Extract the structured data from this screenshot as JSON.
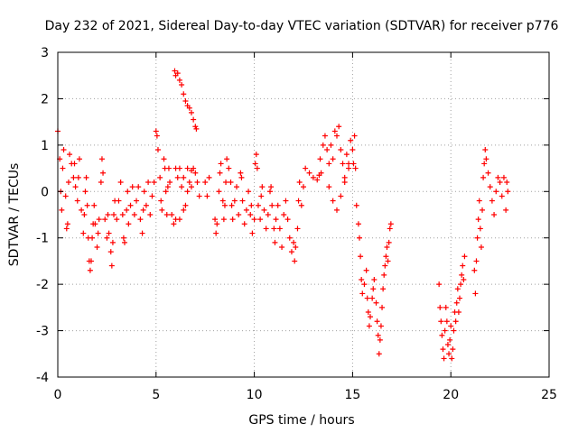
{
  "chart_data": {
    "type": "scatter",
    "title": "Day 232 of 2021, Sidereal Day-to-day VTEC variation (SDTVAR) for receiver p776",
    "xlabel": "GPS time / hours",
    "ylabel": "SDTVAR / TECUs",
    "xlim": [
      0,
      25
    ],
    "ylim": [
      -4,
      3
    ],
    "xticks": [
      "0",
      "5",
      "10",
      "15",
      "20",
      "25"
    ],
    "yticks": [
      "-4",
      "-3",
      "-2",
      "-1",
      "0",
      "1",
      "2",
      "3"
    ],
    "grid": true,
    "marker": "+",
    "series": [
      {
        "name": "SDTVAR",
        "color": "#ff0000",
        "points": [
          [
            0.0,
            1.3
          ],
          [
            0.1,
            0.7
          ],
          [
            0.15,
            0.0
          ],
          [
            0.2,
            -0.4
          ],
          [
            0.25,
            0.5
          ],
          [
            0.3,
            0.9
          ],
          [
            0.4,
            -0.1
          ],
          [
            0.45,
            -0.8
          ],
          [
            0.5,
            -0.7
          ],
          [
            0.55,
            0.2
          ],
          [
            0.6,
            0.8
          ],
          [
            0.7,
            0.6
          ],
          [
            0.8,
            0.3
          ],
          [
            0.85,
            0.6
          ],
          [
            0.9,
            0.1
          ],
          [
            1.0,
            -0.2
          ],
          [
            1.05,
            0.3
          ],
          [
            1.1,
            0.7
          ],
          [
            1.2,
            -0.4
          ],
          [
            1.3,
            -0.9
          ],
          [
            1.35,
            -0.5
          ],
          [
            1.4,
            0.0
          ],
          [
            1.45,
            0.3
          ],
          [
            1.5,
            -0.3
          ],
          [
            1.55,
            -1.0
          ],
          [
            1.6,
            -1.5
          ],
          [
            1.65,
            -1.7
          ],
          [
            1.7,
            -1.5
          ],
          [
            1.75,
            -1.0
          ],
          [
            1.8,
            -0.7
          ],
          [
            1.85,
            -0.3
          ],
          [
            1.9,
            -0.7
          ],
          [
            2.0,
            -1.2
          ],
          [
            2.05,
            -0.9
          ],
          [
            2.1,
            -0.6
          ],
          [
            2.2,
            0.2
          ],
          [
            2.25,
            0.7
          ],
          [
            2.3,
            0.4
          ],
          [
            2.4,
            -0.6
          ],
          [
            2.5,
            -1.0
          ],
          [
            2.55,
            -0.5
          ],
          [
            2.6,
            -0.9
          ],
          [
            2.7,
            -1.3
          ],
          [
            2.75,
            -1.6
          ],
          [
            2.8,
            -1.1
          ],
          [
            2.85,
            -0.5
          ],
          [
            2.9,
            -0.2
          ],
          [
            3.0,
            -0.6
          ],
          [
            3.1,
            -0.2
          ],
          [
            3.2,
            0.2
          ],
          [
            3.3,
            -0.5
          ],
          [
            3.35,
            -1.0
          ],
          [
            3.4,
            -1.1
          ],
          [
            3.5,
            -0.4
          ],
          [
            3.55,
            0.0
          ],
          [
            3.6,
            -0.7
          ],
          [
            3.7,
            -0.3
          ],
          [
            3.8,
            0.1
          ],
          [
            3.9,
            -0.5
          ],
          [
            4.0,
            -0.2
          ],
          [
            4.1,
            0.1
          ],
          [
            4.2,
            -0.6
          ],
          [
            4.3,
            -0.9
          ],
          [
            4.35,
            -0.4
          ],
          [
            4.4,
            0.0
          ],
          [
            4.5,
            -0.3
          ],
          [
            4.6,
            0.2
          ],
          [
            4.7,
            -0.5
          ],
          [
            4.8,
            -0.1
          ],
          [
            4.9,
            0.2
          ],
          [
            5.0,
            1.3
          ],
          [
            5.05,
            1.2
          ],
          [
            5.1,
            0.9
          ],
          [
            5.2,
            0.3
          ],
          [
            5.25,
            -0.2
          ],
          [
            5.3,
            -0.4
          ],
          [
            5.4,
            0.7
          ],
          [
            5.45,
            0.5
          ],
          [
            5.5,
            0.0
          ],
          [
            5.55,
            -0.5
          ],
          [
            5.6,
            0.1
          ],
          [
            5.65,
            0.5
          ],
          [
            5.7,
            0.2
          ],
          [
            5.8,
            -0.5
          ],
          [
            5.9,
            -0.7
          ],
          [
            6.0,
            -0.6
          ],
          [
            5.95,
            2.6
          ],
          [
            6.0,
            2.5
          ],
          [
            6.1,
            2.55
          ],
          [
            6.2,
            2.4
          ],
          [
            6.3,
            2.3
          ],
          [
            6.4,
            2.1
          ],
          [
            6.5,
            1.95
          ],
          [
            6.6,
            1.85
          ],
          [
            6.7,
            1.8
          ],
          [
            6.8,
            1.7
          ],
          [
            6.9,
            1.55
          ],
          [
            7.0,
            1.4
          ],
          [
            7.05,
            1.35
          ],
          [
            6.0,
            0.5
          ],
          [
            6.1,
            0.3
          ],
          [
            6.2,
            0.5
          ],
          [
            6.3,
            0.1
          ],
          [
            6.4,
            -0.4
          ],
          [
            6.5,
            -0.3
          ],
          [
            6.6,
            0.0
          ],
          [
            6.7,
            0.2
          ],
          [
            6.8,
            0.1
          ],
          [
            6.9,
            0.5
          ],
          [
            7.0,
            0.4
          ],
          [
            7.1,
            0.2
          ],
          [
            7.2,
            -0.1
          ],
          [
            6.2,
            -0.6
          ],
          [
            6.4,
            0.3
          ],
          [
            6.6,
            0.5
          ],
          [
            6.8,
            0.45
          ],
          [
            7.5,
            0.2
          ],
          [
            7.6,
            -0.1
          ],
          [
            7.7,
            0.3
          ],
          [
            8.0,
            -0.6
          ],
          [
            8.05,
            -0.9
          ],
          [
            8.1,
            -0.7
          ],
          [
            8.2,
            0.0
          ],
          [
            8.25,
            0.4
          ],
          [
            8.3,
            0.6
          ],
          [
            8.4,
            -0.2
          ],
          [
            8.45,
            -0.6
          ],
          [
            8.5,
            -0.3
          ],
          [
            8.55,
            0.2
          ],
          [
            8.6,
            0.7
          ],
          [
            8.7,
            0.5
          ],
          [
            8.8,
            0.2
          ],
          [
            8.85,
            -0.3
          ],
          [
            8.9,
            -0.6
          ],
          [
            9.0,
            -0.2
          ],
          [
            9.1,
            0.1
          ],
          [
            9.2,
            -0.5
          ],
          [
            9.3,
            0.4
          ],
          [
            9.35,
            0.3
          ],
          [
            9.4,
            -0.2
          ],
          [
            9.5,
            -0.7
          ],
          [
            9.6,
            -0.4
          ],
          [
            9.7,
            0.0
          ],
          [
            9.8,
            -0.5
          ],
          [
            9.85,
            -0.3
          ],
          [
            9.9,
            -0.9
          ],
          [
            10.0,
            -0.6
          ],
          [
            10.05,
            0.6
          ],
          [
            10.1,
            0.8
          ],
          [
            10.15,
            0.5
          ],
          [
            10.2,
            -0.3
          ],
          [
            10.3,
            -0.6
          ],
          [
            10.35,
            -0.1
          ],
          [
            10.4,
            0.1
          ],
          [
            10.5,
            -0.4
          ],
          [
            10.6,
            -0.8
          ],
          [
            10.7,
            -0.5
          ],
          [
            10.8,
            0.0
          ],
          [
            10.85,
            0.1
          ],
          [
            10.9,
            -0.3
          ],
          [
            11.0,
            -0.8
          ],
          [
            11.05,
            -1.1
          ],
          [
            11.1,
            -0.6
          ],
          [
            11.2,
            -0.3
          ],
          [
            11.3,
            -0.8
          ],
          [
            11.4,
            -1.2
          ],
          [
            11.5,
            -0.5
          ],
          [
            11.6,
            -0.2
          ],
          [
            11.7,
            -0.6
          ],
          [
            11.8,
            -1.0
          ],
          [
            11.9,
            -1.3
          ],
          [
            12.0,
            -1.1
          ],
          [
            12.05,
            -1.5
          ],
          [
            12.1,
            -1.2
          ],
          [
            12.2,
            -0.8
          ],
          [
            12.25,
            -0.2
          ],
          [
            12.3,
            0.2
          ],
          [
            12.4,
            -0.3
          ],
          [
            12.5,
            0.1
          ],
          [
            12.6,
            0.5
          ],
          [
            12.8,
            0.4
          ],
          [
            13.0,
            0.3
          ],
          [
            13.2,
            0.25
          ],
          [
            13.3,
            0.35
          ],
          [
            13.35,
            0.7
          ],
          [
            13.4,
            0.4
          ],
          [
            13.5,
            1.0
          ],
          [
            13.6,
            1.2
          ],
          [
            13.7,
            0.9
          ],
          [
            13.8,
            0.6
          ],
          [
            13.9,
            1.0
          ],
          [
            14.0,
            0.7
          ],
          [
            14.1,
            1.3
          ],
          [
            14.2,
            1.2
          ],
          [
            14.3,
            1.4
          ],
          [
            14.4,
            0.9
          ],
          [
            14.5,
            0.6
          ],
          [
            14.6,
            0.3
          ],
          [
            14.7,
            0.8
          ],
          [
            14.8,
            0.5
          ],
          [
            14.9,
            1.1
          ],
          [
            15.0,
            0.9
          ],
          [
            15.05,
            0.6
          ],
          [
            15.1,
            1.2
          ],
          [
            15.15,
            0.5
          ],
          [
            13.8,
            0.1
          ],
          [
            14.0,
            -0.2
          ],
          [
            14.2,
            -0.4
          ],
          [
            14.4,
            -0.1
          ],
          [
            14.6,
            0.2
          ],
          [
            14.8,
            0.6
          ],
          [
            15.2,
            -0.3
          ],
          [
            15.3,
            -0.7
          ],
          [
            15.35,
            -1.0
          ],
          [
            15.4,
            -1.4
          ],
          [
            15.45,
            -1.9
          ],
          [
            15.5,
            -2.2
          ],
          [
            15.6,
            -2.0
          ],
          [
            15.7,
            -1.7
          ],
          [
            15.75,
            -2.3
          ],
          [
            15.8,
            -2.6
          ],
          [
            15.85,
            -2.9
          ],
          [
            15.9,
            -2.7
          ],
          [
            16.0,
            -2.3
          ],
          [
            16.05,
            -2.1
          ],
          [
            16.1,
            -1.9
          ],
          [
            16.2,
            -2.4
          ],
          [
            16.25,
            -2.8
          ],
          [
            16.3,
            -3.1
          ],
          [
            16.35,
            -3.5
          ],
          [
            16.4,
            -3.2
          ],
          [
            16.45,
            -2.9
          ],
          [
            16.5,
            -2.5
          ],
          [
            16.55,
            -2.1
          ],
          [
            16.6,
            -1.8
          ],
          [
            16.65,
            -1.6
          ],
          [
            16.7,
            -1.4
          ],
          [
            16.75,
            -1.2
          ],
          [
            16.8,
            -1.5
          ],
          [
            16.85,
            -1.1
          ],
          [
            16.9,
            -0.8
          ],
          [
            16.95,
            -0.7
          ],
          [
            19.4,
            -2.0
          ],
          [
            19.45,
            -2.5
          ],
          [
            19.5,
            -2.8
          ],
          [
            19.55,
            -3.1
          ],
          [
            19.6,
            -3.4
          ],
          [
            19.65,
            -3.6
          ],
          [
            19.7,
            -3.0
          ],
          [
            19.75,
            -2.5
          ],
          [
            19.8,
            -2.8
          ],
          [
            19.85,
            -3.3
          ],
          [
            19.9,
            -3.5
          ],
          [
            19.95,
            -3.2
          ],
          [
            20.0,
            -2.9
          ],
          [
            20.05,
            -3.6
          ],
          [
            20.1,
            -3.4
          ],
          [
            20.15,
            -3.0
          ],
          [
            20.2,
            -2.6
          ],
          [
            20.25,
            -2.8
          ],
          [
            20.3,
            -2.4
          ],
          [
            20.35,
            -2.1
          ],
          [
            20.4,
            -2.6
          ],
          [
            20.45,
            -2.3
          ],
          [
            20.5,
            -2.0
          ],
          [
            20.55,
            -1.8
          ],
          [
            20.6,
            -1.6
          ],
          [
            20.65,
            -1.9
          ],
          [
            20.7,
            -1.4
          ],
          [
            21.2,
            -1.7
          ],
          [
            21.25,
            -2.2
          ],
          [
            21.3,
            -1.5
          ],
          [
            21.35,
            -1.0
          ],
          [
            21.4,
            -0.6
          ],
          [
            21.45,
            -0.2
          ],
          [
            21.5,
            -0.8
          ],
          [
            21.55,
            -1.2
          ],
          [
            21.6,
            -0.4
          ],
          [
            21.65,
            0.3
          ],
          [
            21.7,
            0.6
          ],
          [
            21.75,
            0.9
          ],
          [
            21.8,
            0.7
          ],
          [
            21.9,
            0.4
          ],
          [
            22.0,
            0.1
          ],
          [
            22.1,
            -0.2
          ],
          [
            22.2,
            -0.5
          ],
          [
            22.3,
            0.0
          ],
          [
            22.4,
            0.3
          ],
          [
            22.5,
            0.2
          ],
          [
            22.6,
            -0.1
          ],
          [
            22.7,
            0.3
          ],
          [
            22.8,
            -0.4
          ],
          [
            22.85,
            0.2
          ],
          [
            22.9,
            0.0
          ]
        ]
      }
    ]
  }
}
